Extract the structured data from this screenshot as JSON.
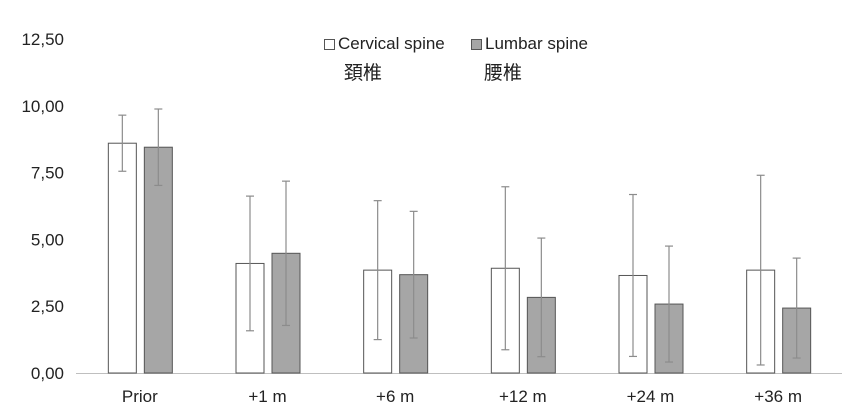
{
  "chart_data": {
    "type": "bar",
    "categories": [
      "Prior",
      "+1 m",
      "+6 m",
      "+12 m",
      "+24 m",
      "+36 m"
    ],
    "ylim": [
      0,
      12.5
    ],
    "yticks": [
      "0,00",
      "2,50",
      "5,00",
      "7,50",
      "10,00",
      "12,50"
    ],
    "ytick_values": [
      0,
      2.5,
      5,
      7.5,
      10,
      12.5
    ],
    "grid": false,
    "legend_position": "top-center",
    "series": [
      {
        "name": "Cervical spine",
        "name_secondary": "頚椎",
        "values": [
          8.6,
          4.1,
          3.85,
          3.92,
          3.65,
          3.85
        ],
        "error": [
          1.05,
          2.52,
          2.6,
          3.05,
          3.03,
          3.55
        ],
        "fill": "#ffffff",
        "stroke": "#555555"
      },
      {
        "name": "Lumbar spine",
        "name_secondary": "腰椎",
        "values": [
          8.45,
          4.48,
          3.68,
          2.83,
          2.58,
          2.43
        ],
        "error": [
          1.43,
          2.7,
          2.37,
          2.22,
          2.17,
          1.87
        ],
        "fill": "#a6a6a6",
        "stroke": "#555555"
      }
    ]
  }
}
